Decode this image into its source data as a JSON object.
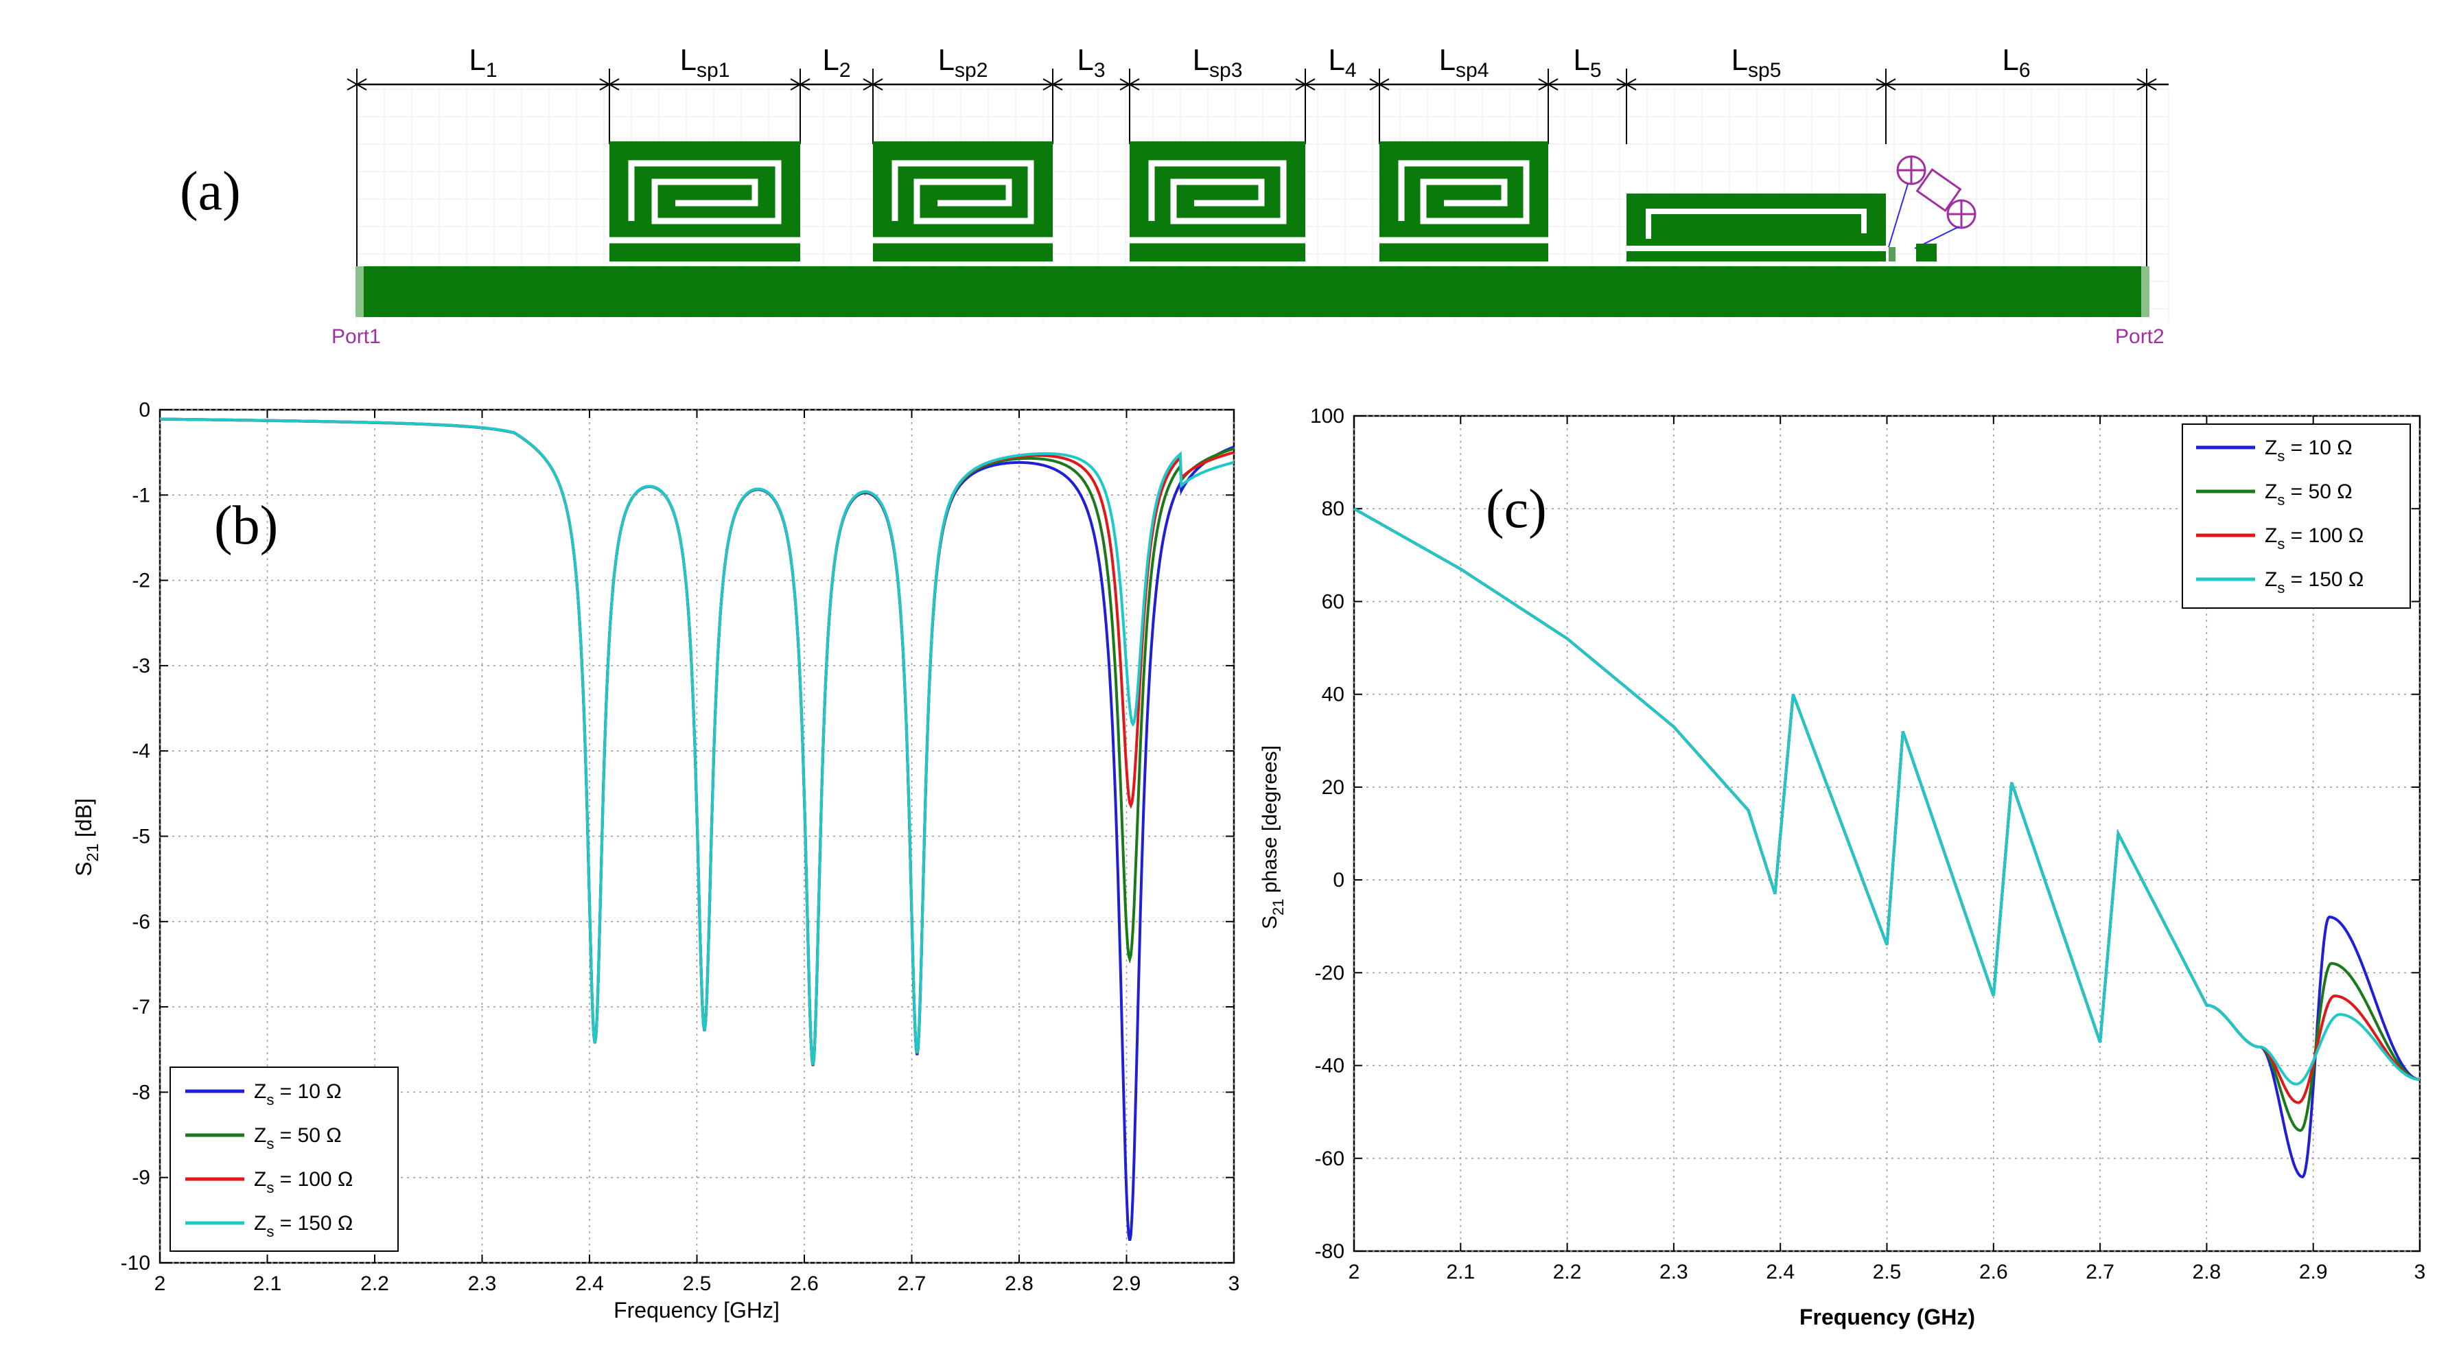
{
  "panel_a": {
    "label": "(a)",
    "dims": [
      {
        "main": "L",
        "sub": "1"
      },
      {
        "main": "L",
        "sub": "sp1"
      },
      {
        "main": "L",
        "sub": "2"
      },
      {
        "main": "L",
        "sub": "sp2"
      },
      {
        "main": "L",
        "sub": "3"
      },
      {
        "main": "L",
        "sub": "sp3"
      },
      {
        "main": "L",
        "sub": "4"
      },
      {
        "main": "L",
        "sub": "sp4"
      },
      {
        "main": "L",
        "sub": "5"
      },
      {
        "main": "L",
        "sub": "sp5"
      },
      {
        "main": "L",
        "sub": "6"
      }
    ],
    "port1": "Port1",
    "port2": "Port2",
    "colors": {
      "trace": "#0a7a0a",
      "port": "#a030a0"
    }
  },
  "chart_data": [
    {
      "panel_label": "(b)",
      "type": "line",
      "xlabel": "Frequency [GHz]",
      "ylabel_main": "S",
      "ylabel_sub": "21",
      "ylabel_rest": " [dB]",
      "xlim": [
        2,
        3
      ],
      "ylim": [
        -10,
        0
      ],
      "xticks": [
        "2",
        "2.1",
        "2.2",
        "2.3",
        "2.4",
        "2.5",
        "2.6",
        "2.7",
        "2.8",
        "2.9",
        "3"
      ],
      "yticks": [
        "0",
        "-1",
        "-2",
        "-3",
        "-4",
        "-5",
        "-6",
        "-7",
        "-8",
        "-9",
        "-10"
      ],
      "grid": true,
      "legend_position": "bottom-left",
      "common_dips": [
        {
          "f": 2.405,
          "depth": -7.3
        },
        {
          "f": 2.507,
          "depth": -7.1
        },
        {
          "f": 2.608,
          "depth": -7.5
        },
        {
          "f": 2.705,
          "depth": -7.4
        }
      ],
      "series": [
        {
          "name": "Zs = 10 Ω",
          "label_main": "Z",
          "label_sub": "s",
          "label_rest": " = 10 Ω",
          "color": "#1f1fd6",
          "dip_f": 2.903,
          "dip_depth": -9.8,
          "end_value": -0.28
        },
        {
          "name": "Zs = 50 Ω",
          "label_main": "Z",
          "label_sub": "s",
          "label_rest": " = 50 Ω",
          "color": "#1a7a1a",
          "dip_f": 2.903,
          "dip_depth": -6.5,
          "end_value": -0.35
        },
        {
          "name": "Zs = 100 Ω",
          "label_main": "Z",
          "label_sub": "s",
          "label_rest": " = 100 Ω",
          "color": "#e01818",
          "dip_f": 2.904,
          "dip_depth": -4.7,
          "end_value": -0.42
        },
        {
          "name": "Zs = 150 Ω",
          "label_main": "Z",
          "label_sub": "s",
          "label_rest": " = 150 Ω",
          "color": "#1ec8c8",
          "dip_f": 2.906,
          "dip_depth": -3.75,
          "end_value": -0.55
        }
      ]
    },
    {
      "panel_label": "(c)",
      "type": "line",
      "xlabel": "Frequency (GHz)",
      "ylabel_main": "S",
      "ylabel_sub": "21",
      "ylabel_rest": " phase [degrees]",
      "xlim": [
        2,
        3
      ],
      "ylim": [
        -80,
        100
      ],
      "xticks": [
        "2",
        "2.1",
        "2.2",
        "2.3",
        "2.4",
        "2.5",
        "2.6",
        "2.7",
        "2.8",
        "2.9",
        "3"
      ],
      "yticks": [
        "100",
        "80",
        "60",
        "40",
        "20",
        "0",
        "-20",
        "-40",
        "-60",
        "-80"
      ],
      "grid": true,
      "legend_position": "top-right",
      "common_points": [
        [
          2.0,
          80
        ],
        [
          2.1,
          67
        ],
        [
          2.2,
          52
        ],
        [
          2.3,
          33
        ],
        [
          2.37,
          15
        ],
        [
          2.395,
          -3
        ],
        [
          2.412,
          40
        ],
        [
          2.5,
          -14
        ],
        [
          2.515,
          32
        ],
        [
          2.6,
          -25
        ],
        [
          2.617,
          21
        ],
        [
          2.7,
          -35
        ],
        [
          2.717,
          10
        ],
        [
          2.8,
          -27
        ]
      ],
      "series": [
        {
          "name": "Zs = 10 Ω",
          "label_main": "Z",
          "label_sub": "s",
          "label_rest": " = 10 Ω",
          "color": "#1f1fd6",
          "min_f": 2.89,
          "min_value": -64,
          "max_f": 2.915,
          "max_value": -8
        },
        {
          "name": "Zs = 50 Ω",
          "label_main": "Z",
          "label_sub": "s",
          "label_rest": " = 50 Ω",
          "color": "#1a7a1a",
          "min_f": 2.888,
          "min_value": -54,
          "max_f": 2.917,
          "max_value": -18
        },
        {
          "name": "Zs = 100 Ω",
          "label_main": "Z",
          "label_sub": "s",
          "label_rest": " = 100 Ω",
          "color": "#e01818",
          "min_f": 2.886,
          "min_value": -48,
          "max_f": 2.92,
          "max_value": -25
        },
        {
          "name": "Zs = 150 Ω",
          "label_main": "Z",
          "label_sub": "s",
          "label_rest": " = 150 Ω",
          "color": "#1ec8c8",
          "min_f": 2.884,
          "min_value": -44,
          "max_f": 2.925,
          "max_value": -29
        }
      ],
      "end_value": -43
    }
  ]
}
